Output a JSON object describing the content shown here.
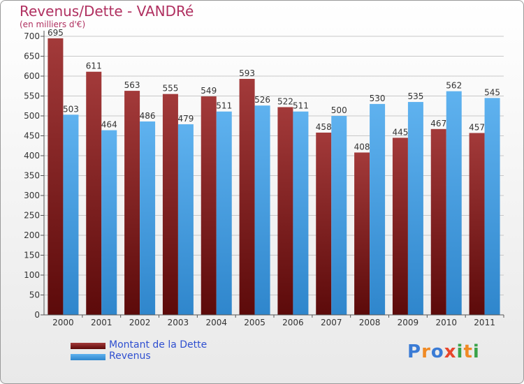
{
  "title": "Revenus/Dette - VANDRé",
  "subtitle": "(en milliers d'€)",
  "logo": {
    "letters": [
      "P",
      "r",
      "o",
      "x",
      "i",
      "t",
      "i"
    ],
    "colors": [
      "#3a7bd5",
      "#f08a24",
      "#3a7bd5",
      "#e8462c",
      "#3aa34a",
      "#f08a24",
      "#3aa34a"
    ]
  },
  "colors": {
    "dette": "#5c0a0a",
    "dette_light": "#a33a3a",
    "revenus": "#2f86cc",
    "revenus_light": "#5fb2ef",
    "title": "#b03060",
    "legend_text": "#2f4fd0"
  },
  "chart_data": {
    "type": "bar",
    "title": "Revenus/Dette - VANDRé",
    "subtitle": "(en milliers d'€)",
    "categories": [
      "2000",
      "2001",
      "2002",
      "2003",
      "2004",
      "2005",
      "2006",
      "2007",
      "2008",
      "2009",
      "2010",
      "2011"
    ],
    "series": [
      {
        "name": "Montant de la Dette",
        "values": [
          695,
          611,
          563,
          555,
          549,
          593,
          522,
          458,
          408,
          445,
          467,
          457
        ]
      },
      {
        "name": "Revenus",
        "values": [
          503,
          464,
          486,
          479,
          511,
          526,
          511,
          500,
          530,
          535,
          562,
          545
        ]
      }
    ],
    "ylim": [
      0,
      700
    ],
    "yticks": [
      0,
      50,
      100,
      150,
      200,
      250,
      300,
      350,
      400,
      450,
      500,
      550,
      600,
      650,
      700
    ],
    "grid": true,
    "legend_position": "bottom-left"
  }
}
